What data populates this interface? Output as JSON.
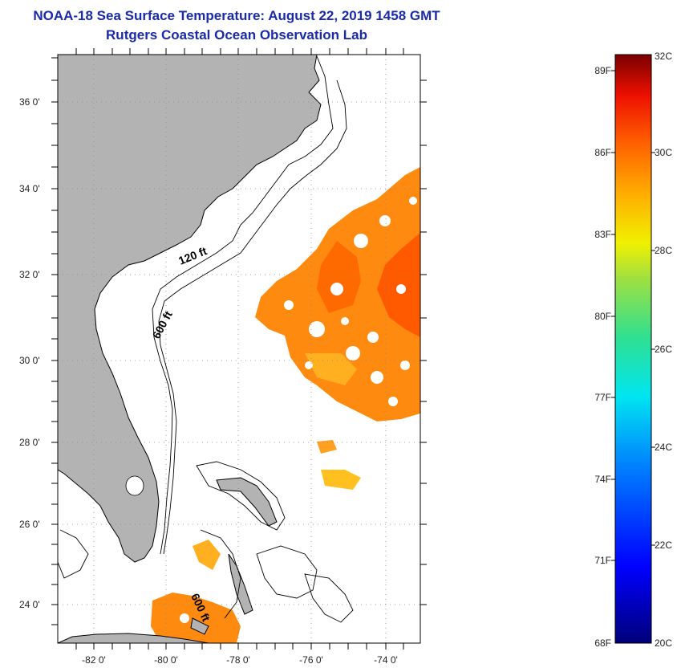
{
  "header": {
    "title": "NOAA-18 Sea Surface Temperature:  August 22, 2019 1458 GMT",
    "subtitle": "Rutgers Coastal Ocean Observation Lab"
  },
  "map": {
    "lat_labels": [
      "36 0'",
      "34 0'",
      "32 0'",
      "30 0'",
      "28 0'",
      "26 0'",
      "24 0'"
    ],
    "lon_labels": [
      "-82 0'",
      "-80 0'",
      "-78 0'",
      "-76 0'",
      "-74 0'"
    ],
    "contour_labels": [
      "120 ft",
      "600 ft",
      "600 ft"
    ],
    "colors": {
      "land": "#b3b3b3",
      "warm": "#ff7a00",
      "hot": "#ff4a00",
      "mid": "#ffb000",
      "water": "#ffffff"
    }
  },
  "colorbar": {
    "f_labels": [
      "89F",
      "86F",
      "83F",
      "80F",
      "77F",
      "74F",
      "71F",
      "68F"
    ],
    "c_labels": [
      "32C",
      "30C",
      "28C",
      "26C",
      "24C",
      "22C",
      "20C"
    ]
  }
}
